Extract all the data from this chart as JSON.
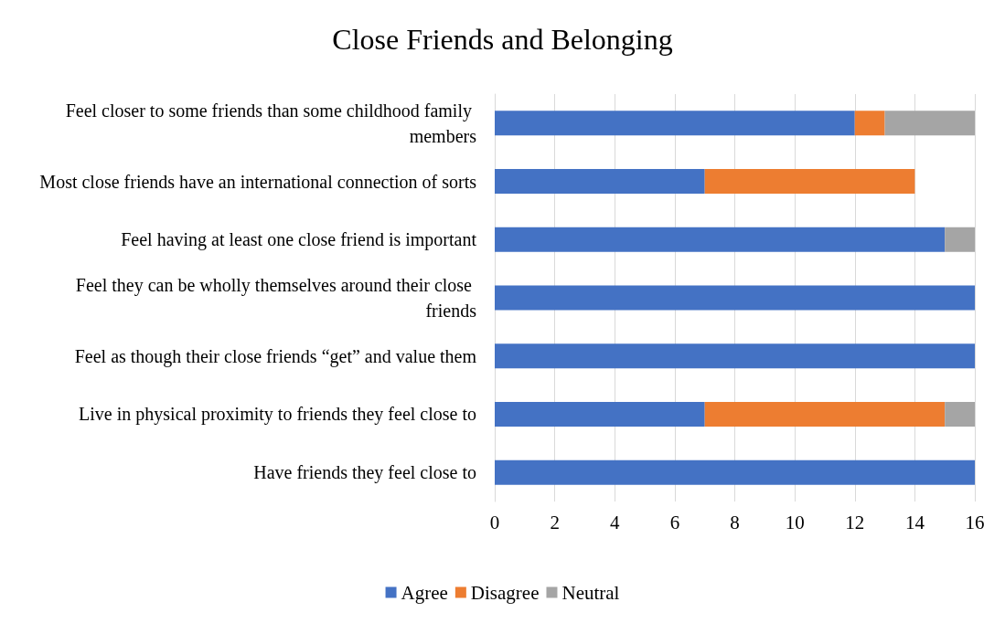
{
  "chart_data": {
    "type": "bar",
    "orientation": "horizontal",
    "stacked": true,
    "title": "Close Friends and Belonging",
    "categories": [
      "Feel closer to some friends than some childhood family members",
      "Most close friends have an international connection of sorts",
      "Feel having at least one close friend is important",
      "Feel they can be wholly themselves around their close friends",
      "Feel as though their close friends “get” and value them",
      "Live in physical proximity to friends they feel close to",
      "Have friends they feel close to"
    ],
    "series": [
      {
        "name": "Agree",
        "color": "#4472c4",
        "values": [
          12,
          7,
          15,
          16,
          16,
          7,
          16
        ]
      },
      {
        "name": "Disagree",
        "color": "#ed7d31",
        "values": [
          1,
          7,
          0,
          0,
          0,
          8,
          0
        ]
      },
      {
        "name": "Neutral",
        "color": "#a5a5a5",
        "values": [
          3,
          0,
          1,
          0,
          0,
          1,
          0
        ]
      }
    ],
    "xlim": [
      0,
      16
    ],
    "xticks": [
      0,
      2,
      4,
      6,
      8,
      10,
      12,
      14,
      16
    ],
    "grid": "x",
    "legend": "bottom"
  }
}
